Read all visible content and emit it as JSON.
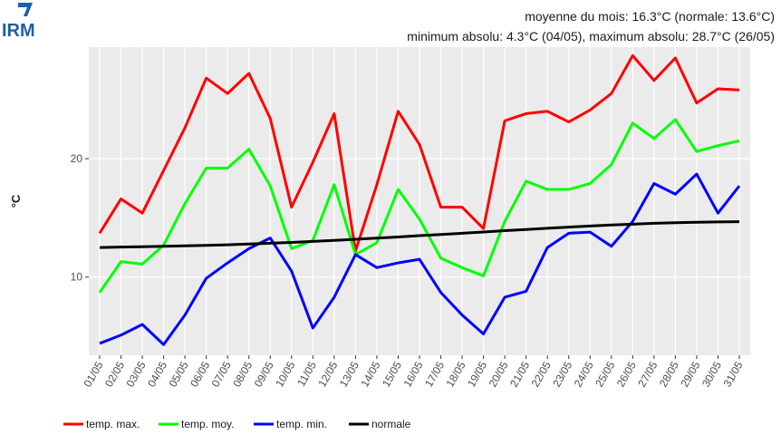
{
  "chart_data": {
    "type": "line",
    "logo": "IRM",
    "annotations": [
      "moyenne du mois: 16.3°C (normale: 13.6°C)",
      "minimum absolu: 4.3°C (04/05), maximum absolu: 28.7°C (26/05)"
    ],
    "y_label": "°C",
    "categories": [
      "01/05",
      "02/05",
      "03/05",
      "04/05",
      "05/05",
      "06/05",
      "07/05",
      "08/05",
      "09/05",
      "10/05",
      "11/05",
      "12/05",
      "13/05",
      "14/05",
      "15/05",
      "16/05",
      "17/05",
      "18/05",
      "19/05",
      "20/05",
      "21/05",
      "22/05",
      "23/05",
      "24/05",
      "25/05",
      "26/05",
      "27/05",
      "28/05",
      "29/05",
      "30/05",
      "31/05"
    ],
    "series": [
      {
        "name": "temp. max.",
        "color": "#ff0000",
        "values": [
          13.7,
          16.6,
          15.4,
          19,
          22.6,
          26.8,
          25.5,
          27.2,
          23.4,
          15.9,
          19.7,
          23.8,
          12.2,
          17.8,
          24,
          21.2,
          15.9,
          15.9,
          14.1,
          23.2,
          23.8,
          24,
          23.1,
          24.1,
          25.5,
          28.7,
          26.6,
          28.5,
          24.7,
          25.9,
          25.8
        ]
      },
      {
        "name": "temp. moy.",
        "color": "#00ff00",
        "values": [
          8.7,
          11.3,
          11.1,
          12.7,
          16.2,
          19.2,
          19.2,
          20.8,
          17.7,
          12.4,
          13.1,
          17.8,
          11.9,
          12.9,
          17.4,
          14.9,
          11.6,
          10.8,
          10.1,
          14.7,
          18.1,
          17.4,
          17.4,
          17.9,
          19.5,
          23,
          21.7,
          23.3,
          20.6,
          21.1,
          21.5
        ]
      },
      {
        "name": "temp. min.",
        "color": "#0000ff",
        "values": [
          4.4,
          5.1,
          6,
          4.3,
          6.8,
          9.9,
          11.2,
          12.4,
          13.3,
          10.5,
          5.7,
          8.3,
          11.9,
          10.8,
          11.2,
          11.5,
          8.7,
          6.8,
          5.2,
          8.3,
          8.8,
          12.5,
          13.7,
          13.8,
          12.6,
          14.7,
          17.9,
          17,
          18.7,
          15.4,
          17.7
        ]
      },
      {
        "name": "normale",
        "color": "#000000",
        "values": [
          12.5,
          12.53,
          12.56,
          12.6,
          12.64,
          12.68,
          12.73,
          12.79,
          12.86,
          12.93,
          13.01,
          13.1,
          13.19,
          13.29,
          13.39,
          13.5,
          13.6,
          13.7,
          13.81,
          13.92,
          14.02,
          14.12,
          14.22,
          14.31,
          14.4,
          14.47,
          14.54,
          14.59,
          14.63,
          14.66,
          14.68
        ]
      }
    ],
    "ylim": [
      3.4,
      31.1
    ],
    "yticks": [
      10,
      20
    ],
    "grid": true
  }
}
